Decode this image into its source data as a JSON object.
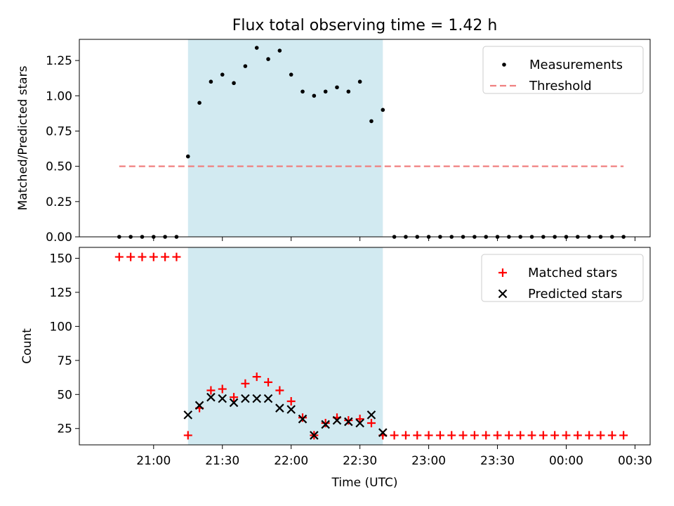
{
  "chart_data": [
    {
      "type": "scatter",
      "title": "Flux total observing time = 1.42 h",
      "ylabel": "Matched/Predicted stars",
      "xlabel": "",
      "x_unit": "time (UTC)",
      "ylim": [
        0,
        1.4
      ],
      "yticks": [
        "0.00",
        "0.25",
        "0.50",
        "0.75",
        "1.00",
        "1.25"
      ],
      "shaded_span": {
        "from": "21:15",
        "to": "22:40",
        "color": "#add8e6"
      },
      "legend_position": "upper right",
      "series": [
        {
          "name": "Measurements",
          "marker": "dot",
          "color": "#000000",
          "points": [
            [
              "20:45",
              0
            ],
            [
              "20:50",
              0
            ],
            [
              "20:55",
              0
            ],
            [
              "21:00",
              0
            ],
            [
              "21:05",
              0
            ],
            [
              "21:10",
              0
            ],
            [
              "21:15",
              0.57
            ],
            [
              "21:20",
              0.95
            ],
            [
              "21:25",
              1.1
            ],
            [
              "21:30",
              1.15
            ],
            [
              "21:35",
              1.09
            ],
            [
              "21:40",
              1.21
            ],
            [
              "21:45",
              1.34
            ],
            [
              "21:50",
              1.26
            ],
            [
              "21:55",
              1.32
            ],
            [
              "22:00",
              1.15
            ],
            [
              "22:05",
              1.03
            ],
            [
              "22:10",
              1.0
            ],
            [
              "22:15",
              1.03
            ],
            [
              "22:20",
              1.06
            ],
            [
              "22:25",
              1.03
            ],
            [
              "22:30",
              1.1
            ],
            [
              "22:35",
              0.82
            ],
            [
              "22:40",
              0.9
            ],
            [
              "22:45",
              0
            ],
            [
              "22:50",
              0
            ],
            [
              "22:55",
              0
            ],
            [
              "23:00",
              0
            ],
            [
              "23:05",
              0
            ],
            [
              "23:10",
              0
            ],
            [
              "23:15",
              0
            ],
            [
              "23:20",
              0
            ],
            [
              "23:25",
              0
            ],
            [
              "23:30",
              0
            ],
            [
              "23:35",
              0
            ],
            [
              "23:40",
              0
            ],
            [
              "23:45",
              0
            ],
            [
              "23:50",
              0
            ],
            [
              "23:55",
              0
            ],
            [
              "00:00",
              0
            ],
            [
              "00:05",
              0
            ],
            [
              "00:10",
              0
            ],
            [
              "00:15",
              0
            ],
            [
              "00:20",
              0
            ],
            [
              "00:25",
              0
            ]
          ]
        },
        {
          "name": "Threshold",
          "marker": "dashed-line",
          "color": "#f08080",
          "points": [
            [
              "20:45",
              0.5
            ],
            [
              "00:25",
              0.5
            ]
          ]
        }
      ]
    },
    {
      "type": "scatter",
      "title": "",
      "ylabel": "Count",
      "xlabel": "Time (UTC)",
      "ylim": [
        13,
        158
      ],
      "yticks": [
        "25",
        "50",
        "75",
        "100",
        "125",
        "150"
      ],
      "xticks": [
        "21:00",
        "21:30",
        "22:00",
        "22:30",
        "23:00",
        "23:30",
        "00:00",
        "00:30"
      ],
      "shaded_span": {
        "from": "21:15",
        "to": "22:40",
        "color": "#add8e6"
      },
      "legend_position": "upper right",
      "series": [
        {
          "name": "Matched stars",
          "marker": "plus",
          "color": "#ff0000",
          "points": [
            [
              "20:45",
              151
            ],
            [
              "20:50",
              151
            ],
            [
              "20:55",
              151
            ],
            [
              "21:00",
              151
            ],
            [
              "21:05",
              151
            ],
            [
              "21:10",
              151
            ],
            [
              "21:15",
              20
            ],
            [
              "21:20",
              40
            ],
            [
              "21:25",
              53
            ],
            [
              "21:30",
              54
            ],
            [
              "21:35",
              48
            ],
            [
              "21:40",
              58
            ],
            [
              "21:45",
              63
            ],
            [
              "21:50",
              59
            ],
            [
              "21:55",
              53
            ],
            [
              "22:00",
              45
            ],
            [
              "22:05",
              33
            ],
            [
              "22:10",
              20
            ],
            [
              "22:15",
              29
            ],
            [
              "22:20",
              33
            ],
            [
              "22:25",
              31
            ],
            [
              "22:30",
              32
            ],
            [
              "22:35",
              29
            ],
            [
              "22:40",
              20
            ],
            [
              "22:45",
              20
            ],
            [
              "22:50",
              20
            ],
            [
              "22:55",
              20
            ],
            [
              "23:00",
              20
            ],
            [
              "23:05",
              20
            ],
            [
              "23:10",
              20
            ],
            [
              "23:15",
              20
            ],
            [
              "23:20",
              20
            ],
            [
              "23:25",
              20
            ],
            [
              "23:30",
              20
            ],
            [
              "23:35",
              20
            ],
            [
              "23:40",
              20
            ],
            [
              "23:45",
              20
            ],
            [
              "23:50",
              20
            ],
            [
              "23:55",
              20
            ],
            [
              "00:00",
              20
            ],
            [
              "00:05",
              20
            ],
            [
              "00:10",
              20
            ],
            [
              "00:15",
              20
            ],
            [
              "00:20",
              20
            ],
            [
              "00:25",
              20
            ]
          ]
        },
        {
          "name": "Predicted stars",
          "marker": "x",
          "color": "#000000",
          "points": [
            [
              "21:15",
              35
            ],
            [
              "21:20",
              42
            ],
            [
              "21:25",
              48
            ],
            [
              "21:30",
              47
            ],
            [
              "21:35",
              44
            ],
            [
              "21:40",
              47
            ],
            [
              "21:45",
              47
            ],
            [
              "21:50",
              47
            ],
            [
              "21:55",
              40
            ],
            [
              "22:00",
              39
            ],
            [
              "22:05",
              32
            ],
            [
              "22:10",
              20
            ],
            [
              "22:15",
              28
            ],
            [
              "22:20",
              31
            ],
            [
              "22:25",
              30
            ],
            [
              "22:30",
              29
            ],
            [
              "22:35",
              35
            ],
            [
              "22:40",
              22
            ]
          ]
        }
      ]
    }
  ]
}
